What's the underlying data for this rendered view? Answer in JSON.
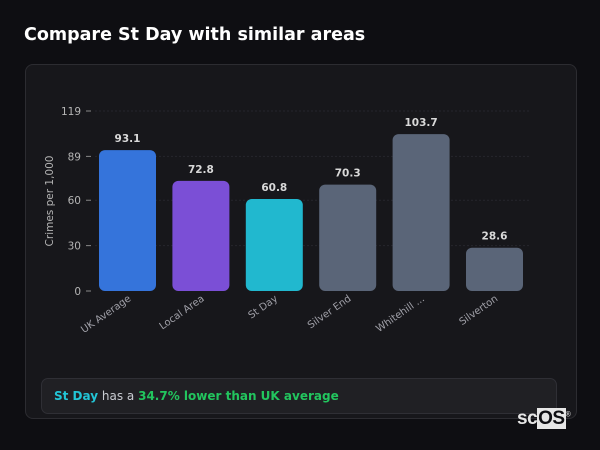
{
  "page_title": "Compare St Day with similar areas",
  "chart_data": {
    "type": "bar",
    "title": "",
    "xlabel": "",
    "ylabel": "Crimes per 1,000",
    "ylim": [
      0,
      119
    ],
    "yticks": [
      0,
      30,
      60,
      89,
      119
    ],
    "grid": true,
    "categories": [
      "UK Average",
      "Local Area",
      "St Day",
      "Silver End",
      "Whitehill ...",
      "Silverton"
    ],
    "values": [
      93.1,
      72.8,
      60.8,
      70.3,
      103.7,
      28.6
    ],
    "data_labels": [
      "93.1",
      "72.8",
      "60.8",
      "70.3",
      "103.7",
      "28.6"
    ],
    "colors": [
      "#3574db",
      "#7b4fd6",
      "#21b8cf",
      "#5a6578",
      "#5a6578",
      "#5a6578"
    ]
  },
  "summary": {
    "area": "St Day",
    "middle": " has a ",
    "highlight": "34.7% lower than UK average"
  },
  "logo": {
    "text_a": "sc",
    "text_b": "OS",
    "mark": "®"
  }
}
